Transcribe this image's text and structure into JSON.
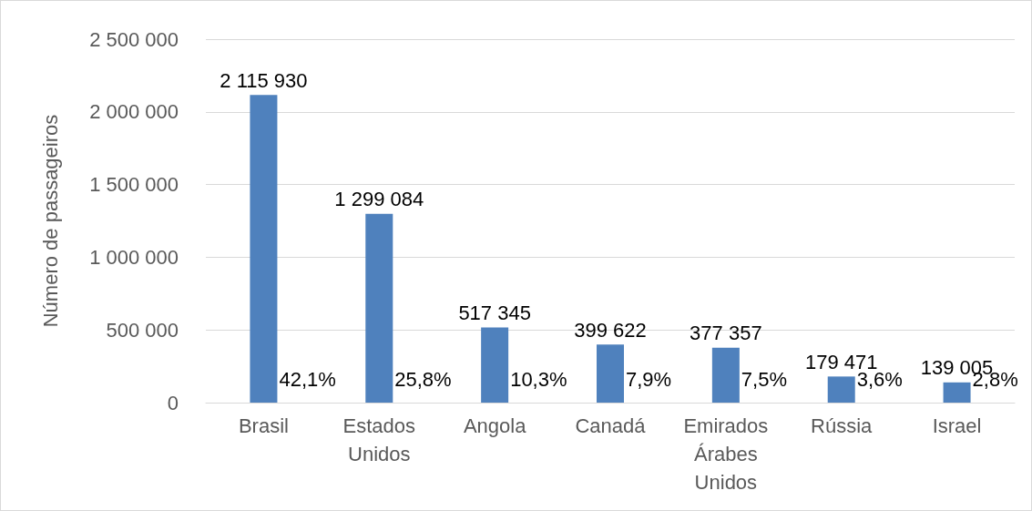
{
  "chart_data": {
    "type": "bar",
    "ylabel": "Número de passageiros",
    "categories": [
      "Brasil",
      "Estados\nUnidos",
      "Angola",
      "Canadá",
      "Emirados\nÁrabes\nUnidos",
      "Rússia",
      "Israel"
    ],
    "values": [
      2115930,
      1299084,
      517345,
      399622,
      377357,
      179471,
      139005
    ],
    "value_labels": [
      "2 115 930",
      "1 299 084",
      "517 345",
      "399 622",
      "377 357",
      "179 471",
      "139 005"
    ],
    "color": "#4f81bd",
    "ylim": [
      0,
      2500000
    ],
    "yticks": [
      {
        "value": 0,
        "label": "0"
      },
      {
        "value": 500000,
        "label": "500 000"
      },
      {
        "value": 1000000,
        "label": "1 000 000"
      },
      {
        "value": 1500000,
        "label": "1 500 000"
      },
      {
        "value": 2000000,
        "label": "2 000 000"
      },
      {
        "value": 2500000,
        "label": "2 500 000"
      }
    ],
    "grid": "y",
    "annotations": [
      "42,1%",
      "25,8%",
      "10,3%",
      "7,9%",
      "7,5%",
      "3,6%",
      "2,8%"
    ]
  }
}
